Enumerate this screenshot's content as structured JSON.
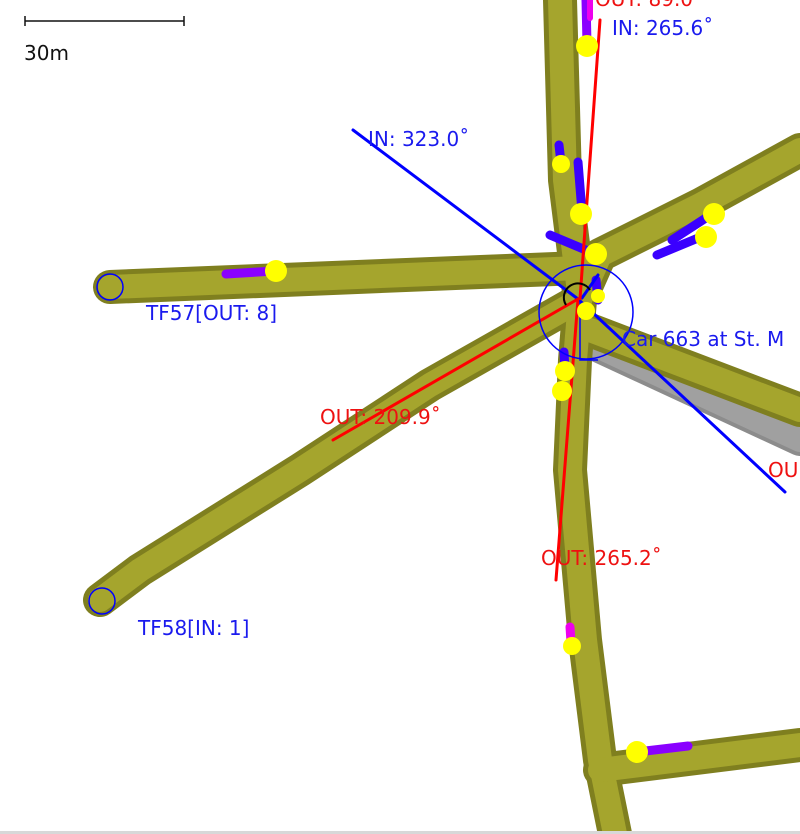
{
  "scale_bar": {
    "label": "30m"
  },
  "colors": {
    "road": "#a5a52d",
    "road_edge": "#7f7f1f",
    "road_gray": "#a0a0a0",
    "vehicle": "#ffff00",
    "trail_blue": "#3a00ff",
    "trail_purple": "#8a00ff",
    "trail_magenta": "#ee00ee",
    "in_direction": "#0000ff",
    "out_direction": "#ff0000",
    "label_blue": "#1a1aee",
    "label_red": "#ee1111"
  },
  "nodes": {
    "tf57": {
      "label": "TF57[OUT: 8]"
    },
    "tf58": {
      "label": "TF58[IN: 1]"
    }
  },
  "car": {
    "label": "Car 663 at St. M"
  },
  "directions": [
    {
      "id": "in_top",
      "type": "in",
      "label": "IN: 265.6˚"
    },
    {
      "id": "in_nw",
      "type": "in",
      "label": "IN: 323.0˚"
    },
    {
      "id": "out_sw",
      "type": "out",
      "label": "OUT: 209.9˚"
    },
    {
      "id": "out_s",
      "type": "out",
      "label": "OUT: 265.2˚"
    },
    {
      "id": "out_top_partial",
      "type": "out",
      "label": "OUT: 89.0˚"
    },
    {
      "id": "out_right_partial",
      "type": "out",
      "label": "OU"
    }
  ]
}
